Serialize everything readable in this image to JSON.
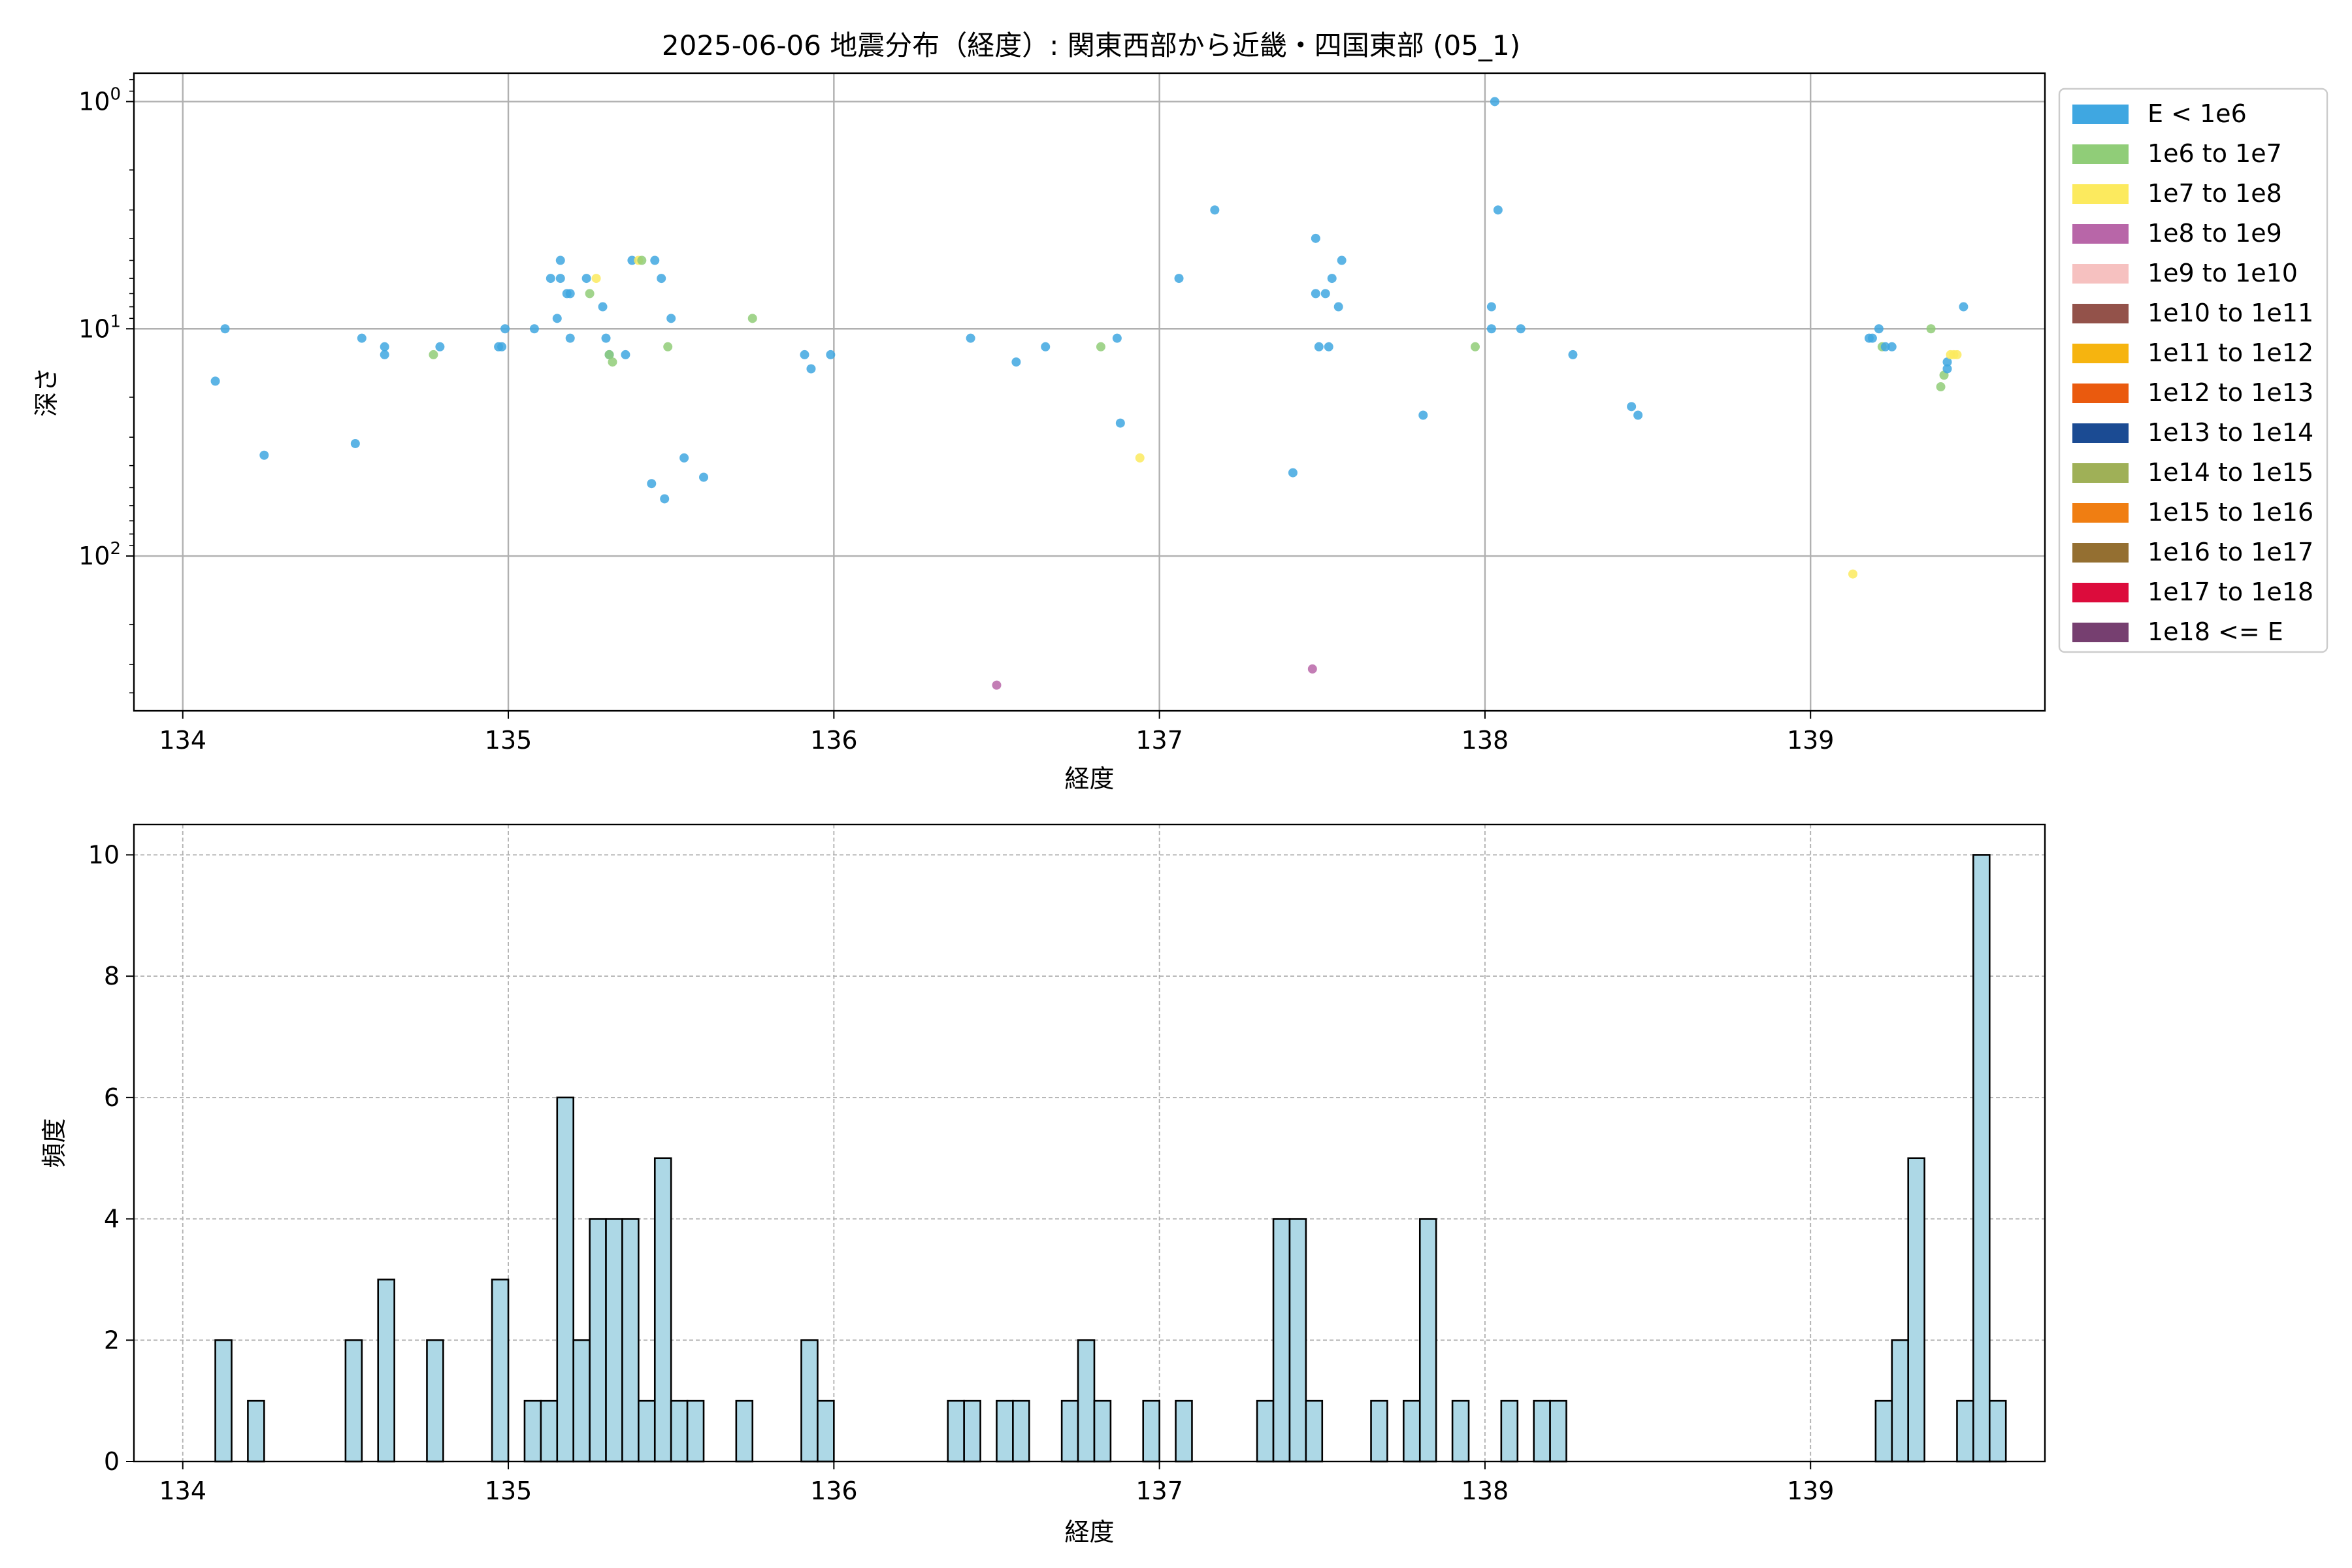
{
  "chart_data": [
    {
      "type": "scatter",
      "title": "2025-06-06 地震分布（経度）: 関東西部から近畿・四国東部 (05_1)",
      "xlabel": "経度",
      "ylabel": "深さ",
      "yscale": "log",
      "yaxis_inverted": true,
      "xlim": [
        133.85,
        139.72
      ],
      "ylim": [
        480,
        0.75
      ],
      "x_ticks": [
        "134",
        "135",
        "136",
        "137",
        "138",
        "139"
      ],
      "y_ticks": [
        "10^0",
        "10^1",
        "10^2"
      ],
      "grid": true,
      "legend": {
        "placement": "outside-right",
        "entries": [
          {
            "label": "E < 1e6",
            "color": "#3fa7e1"
          },
          {
            "label": "1e6 to 1e7",
            "color": "#90cd78"
          },
          {
            "label": "1e7 to 1e8",
            "color": "#fcea5e"
          },
          {
            "label": "1e8 to 1e9",
            "color": "#b866a8"
          },
          {
            "label": "1e9 to 1e10",
            "color": "#f6c1c0"
          },
          {
            "label": "1e10 to 1e11",
            "color": "#93524a"
          },
          {
            "label": "1e11 to 1e12",
            "color": "#f6b40f"
          },
          {
            "label": "1e12 to 1e13",
            "color": "#ea5a0e"
          },
          {
            "label": "1e13 to 1e14",
            "color": "#1b4b93"
          },
          {
            "label": "1e14 to 1e15",
            "color": "#9fb057"
          },
          {
            "label": "1e15 to 1e16",
            "color": "#f07e12"
          },
          {
            "label": "1e16 to 1e17",
            "color": "#946f31"
          },
          {
            "label": "1e17 to 1e18",
            "color": "#dc0c3c"
          },
          {
            "label": "1e18 <= E",
            "color": "#763f70"
          }
        ]
      },
      "points": [
        {
          "x": 134.1,
          "y": 17,
          "c": 0
        },
        {
          "x": 134.13,
          "y": 10,
          "c": 0
        },
        {
          "x": 134.25,
          "y": 36,
          "c": 0
        },
        {
          "x": 134.53,
          "y": 32,
          "c": 0
        },
        {
          "x": 134.55,
          "y": 11,
          "c": 0
        },
        {
          "x": 134.62,
          "y": 12,
          "c": 0
        },
        {
          "x": 134.62,
          "y": 13,
          "c": 0
        },
        {
          "x": 134.77,
          "y": 13,
          "c": 1
        },
        {
          "x": 134.79,
          "y": 12,
          "c": 0
        },
        {
          "x": 134.97,
          "y": 12,
          "c": 0
        },
        {
          "x": 134.98,
          "y": 12,
          "c": 0
        },
        {
          "x": 134.99,
          "y": 10,
          "c": 0
        },
        {
          "x": 135.08,
          "y": 10,
          "c": 0
        },
        {
          "x": 135.13,
          "y": 6,
          "c": 0
        },
        {
          "x": 135.15,
          "y": 9,
          "c": 0
        },
        {
          "x": 135.16,
          "y": 5,
          "c": 0
        },
        {
          "x": 135.16,
          "y": 6,
          "c": 0
        },
        {
          "x": 135.18,
          "y": 7,
          "c": 0
        },
        {
          "x": 135.19,
          "y": 7,
          "c": 0
        },
        {
          "x": 135.19,
          "y": 11,
          "c": 0
        },
        {
          "x": 135.24,
          "y": 6,
          "c": 0
        },
        {
          "x": 135.25,
          "y": 7,
          "c": 1
        },
        {
          "x": 135.27,
          "y": 6,
          "c": 2
        },
        {
          "x": 135.29,
          "y": 8,
          "c": 0
        },
        {
          "x": 135.3,
          "y": 11,
          "c": 0
        },
        {
          "x": 135.31,
          "y": 13,
          "c": 0
        },
        {
          "x": 135.31,
          "y": 13,
          "c": 1
        },
        {
          "x": 135.32,
          "y": 14,
          "c": 1
        },
        {
          "x": 135.36,
          "y": 13,
          "c": 0
        },
        {
          "x": 135.38,
          "y": 5,
          "c": 0
        },
        {
          "x": 135.4,
          "y": 5,
          "c": 2
        },
        {
          "x": 135.41,
          "y": 5,
          "c": 1
        },
        {
          "x": 135.44,
          "y": 48,
          "c": 0
        },
        {
          "x": 135.45,
          "y": 5,
          "c": 0
        },
        {
          "x": 135.47,
          "y": 6,
          "c": 0
        },
        {
          "x": 135.48,
          "y": 56,
          "c": 0
        },
        {
          "x": 135.49,
          "y": 12,
          "c": 1
        },
        {
          "x": 135.5,
          "y": 9,
          "c": 0
        },
        {
          "x": 135.54,
          "y": 37,
          "c": 0
        },
        {
          "x": 135.6,
          "y": 45,
          "c": 0
        },
        {
          "x": 135.75,
          "y": 9,
          "c": 1
        },
        {
          "x": 135.91,
          "y": 13,
          "c": 0
        },
        {
          "x": 135.93,
          "y": 15,
          "c": 0
        },
        {
          "x": 135.99,
          "y": 13,
          "c": 0
        },
        {
          "x": 136.42,
          "y": 11,
          "c": 0
        },
        {
          "x": 136.5,
          "y": 370,
          "c": 3
        },
        {
          "x": 136.56,
          "y": 14,
          "c": 0
        },
        {
          "x": 136.65,
          "y": 12,
          "c": 0
        },
        {
          "x": 136.82,
          "y": 12,
          "c": 1
        },
        {
          "x": 136.87,
          "y": 11,
          "c": 0
        },
        {
          "x": 136.88,
          "y": 26,
          "c": 0
        },
        {
          "x": 136.94,
          "y": 37,
          "c": 2
        },
        {
          "x": 137.06,
          "y": 6,
          "c": 0
        },
        {
          "x": 137.17,
          "y": 3,
          "c": 0
        },
        {
          "x": 137.41,
          "y": 43,
          "c": 0
        },
        {
          "x": 137.47,
          "y": 314,
          "c": 3
        },
        {
          "x": 137.48,
          "y": 4,
          "c": 0
        },
        {
          "x": 137.48,
          "y": 7,
          "c": 0
        },
        {
          "x": 137.49,
          "y": 12,
          "c": 0
        },
        {
          "x": 137.51,
          "y": 7,
          "c": 0
        },
        {
          "x": 137.52,
          "y": 12,
          "c": 0
        },
        {
          "x": 137.53,
          "y": 6,
          "c": 0
        },
        {
          "x": 137.55,
          "y": 8,
          "c": 0
        },
        {
          "x": 137.56,
          "y": 5,
          "c": 0
        },
        {
          "x": 137.81,
          "y": 24,
          "c": 0
        },
        {
          "x": 137.97,
          "y": 12,
          "c": 1
        },
        {
          "x": 138.02,
          "y": 8,
          "c": 0
        },
        {
          "x": 138.02,
          "y": 10,
          "c": 0
        },
        {
          "x": 138.03,
          "y": 1,
          "c": 0
        },
        {
          "x": 138.04,
          "y": 3,
          "c": 0
        },
        {
          "x": 138.11,
          "y": 10,
          "c": 0
        },
        {
          "x": 138.27,
          "y": 13,
          "c": 0
        },
        {
          "x": 138.45,
          "y": 22,
          "c": 0
        },
        {
          "x": 138.47,
          "y": 24,
          "c": 0
        },
        {
          "x": 139.13,
          "y": 120,
          "c": 2
        },
        {
          "x": 139.18,
          "y": 11,
          "c": 0
        },
        {
          "x": 139.19,
          "y": 11,
          "c": 0
        },
        {
          "x": 139.21,
          "y": 10,
          "c": 0
        },
        {
          "x": 139.22,
          "y": 12,
          "c": 1
        },
        {
          "x": 139.23,
          "y": 12,
          "c": 0
        },
        {
          "x": 139.25,
          "y": 12,
          "c": 0
        },
        {
          "x": 139.37,
          "y": 10,
          "c": 1
        },
        {
          "x": 139.4,
          "y": 18,
          "c": 1
        },
        {
          "x": 139.41,
          "y": 16,
          "c": 1
        },
        {
          "x": 139.42,
          "y": 15,
          "c": 0
        },
        {
          "x": 139.42,
          "y": 14,
          "c": 0
        },
        {
          "x": 139.43,
          "y": 13,
          "c": 2
        },
        {
          "x": 139.44,
          "y": 13,
          "c": 2
        },
        {
          "x": 139.45,
          "y": 13,
          "c": 2
        },
        {
          "x": 139.47,
          "y": 8,
          "c": 0
        }
      ]
    },
    {
      "type": "bar",
      "title": "",
      "xlabel": "経度",
      "ylabel": "頻度",
      "xlim": [
        133.85,
        139.72
      ],
      "ylim": [
        0,
        10.5
      ],
      "x_ticks": [
        "134",
        "135",
        "136",
        "137",
        "138",
        "139"
      ],
      "y_ticks": [
        "0",
        "2",
        "4",
        "6",
        "8",
        "10"
      ],
      "grid": true,
      "bar_color": "#add8e6",
      "bin_start": 134.1,
      "bin_width": 0.05,
      "bins": [
        {
          "i": 0,
          "v": 2
        },
        {
          "i": 2,
          "v": 1
        },
        {
          "i": 8,
          "v": 2
        },
        {
          "i": 10,
          "v": 3
        },
        {
          "i": 13,
          "v": 2
        },
        {
          "i": 17,
          "v": 3
        },
        {
          "i": 19,
          "v": 1
        },
        {
          "i": 20,
          "v": 1
        },
        {
          "i": 21,
          "v": 6
        },
        {
          "i": 22,
          "v": 2
        },
        {
          "i": 23,
          "v": 4
        },
        {
          "i": 24,
          "v": 4
        },
        {
          "i": 25,
          "v": 4
        },
        {
          "i": 26,
          "v": 1
        },
        {
          "i": 27,
          "v": 5
        },
        {
          "i": 28,
          "v": 1
        },
        {
          "i": 29,
          "v": 1
        },
        {
          "i": 32,
          "v": 1
        },
        {
          "i": 36,
          "v": 2
        },
        {
          "i": 37,
          "v": 1
        },
        {
          "i": 45,
          "v": 1
        },
        {
          "i": 46,
          "v": 1
        },
        {
          "i": 48,
          "v": 1
        },
        {
          "i": 49,
          "v": 1
        },
        {
          "i": 52,
          "v": 1
        },
        {
          "i": 53,
          "v": 2
        },
        {
          "i": 54,
          "v": 1
        },
        {
          "i": 57,
          "v": 1
        },
        {
          "i": 59,
          "v": 1
        },
        {
          "i": 64,
          "v": 1
        },
        {
          "i": 65,
          "v": 4
        },
        {
          "i": 66,
          "v": 4
        },
        {
          "i": 67,
          "v": 1
        },
        {
          "i": 71,
          "v": 1
        },
        {
          "i": 73,
          "v": 1
        },
        {
          "i": 74,
          "v": 4
        },
        {
          "i": 76,
          "v": 1
        },
        {
          "i": 79,
          "v": 1
        },
        {
          "i": 81,
          "v": 1
        },
        {
          "i": 82,
          "v": 1
        },
        {
          "i": 102,
          "v": 1
        },
        {
          "i": 103,
          "v": 2
        },
        {
          "i": 104,
          "v": 5
        },
        {
          "i": 107,
          "v": 1
        },
        {
          "i": 108,
          "v": 10
        },
        {
          "i": 109,
          "v": 1
        }
      ]
    }
  ]
}
